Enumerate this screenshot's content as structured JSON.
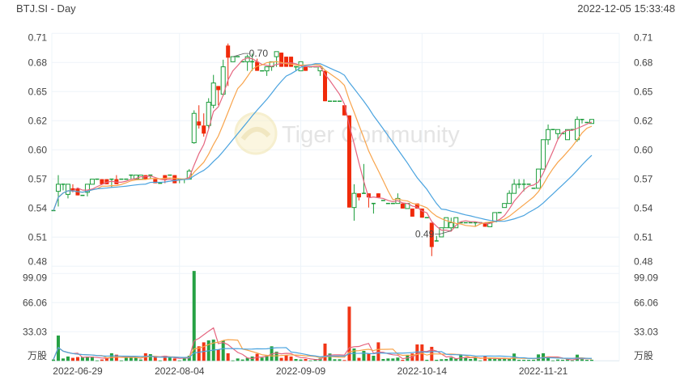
{
  "header": {
    "title": "BTJ.SI - Day",
    "timestamp": "2022-12-05 15:33:48"
  },
  "watermark": {
    "text": "Tiger Community"
  },
  "colors": {
    "up": "#1a9c3a",
    "down": "#f02a0a",
    "ma5": "#e5657f",
    "ma10": "#f8a44c",
    "ma20": "#4aa3df",
    "grid": "#edf4f9"
  },
  "chart_data": {
    "type": "candlestick",
    "price_axis": {
      "ylim": [
        0.48,
        0.71
      ],
      "tick_labels": [
        "0.71",
        "0.68",
        "0.65",
        "0.62",
        "0.60",
        "0.57",
        "0.54",
        "0.51",
        "0.48"
      ],
      "sides": "left-and-right"
    },
    "volume_axis": {
      "ylim": [
        0,
        99.09
      ],
      "tick_labels": [
        "99.09",
        "66.06",
        "33.03"
      ],
      "unit": "万股"
    },
    "x_tick_labels": [
      "2022-06-29",
      "2022-08-04",
      "2022-09-09",
      "2022-10-14",
      "2022-11-21"
    ],
    "annotations": {
      "high_label": "0.70",
      "high_date": "2022-08-22",
      "low_label": "0.49",
      "low_date": "2022-10-25"
    },
    "moving_averages": [
      "MA5",
      "MA10",
      "MA20"
    ],
    "grid": true,
    "dates": [
      "2022-06-29",
      "2022-06-30",
      "2022-07-01",
      "2022-07-04",
      "2022-07-05",
      "2022-07-06",
      "2022-07-07",
      "2022-07-08",
      "2022-07-11",
      "2022-07-12",
      "2022-07-13",
      "2022-07-14",
      "2022-07-15",
      "2022-07-18",
      "2022-07-19",
      "2022-07-20",
      "2022-07-21",
      "2022-07-22",
      "2022-07-25",
      "2022-07-26",
      "2022-07-27",
      "2022-07-28",
      "2022-07-29",
      "2022-08-01",
      "2022-08-02",
      "2022-08-03",
      "2022-08-04",
      "2022-08-05",
      "2022-08-08",
      "2022-08-10",
      "2022-08-11",
      "2022-08-12",
      "2022-08-15",
      "2022-08-16",
      "2022-08-17",
      "2022-08-18",
      "2022-08-19",
      "2022-08-22",
      "2022-08-23",
      "2022-08-24",
      "2022-08-25",
      "2022-08-26",
      "2022-08-29",
      "2022-08-30",
      "2022-08-31",
      "2022-09-01",
      "2022-09-02",
      "2022-09-05",
      "2022-09-06",
      "2022-09-07",
      "2022-09-08",
      "2022-09-09",
      "2022-09-12",
      "2022-09-13",
      "2022-09-14",
      "2022-09-15",
      "2022-09-16",
      "2022-09-19",
      "2022-09-20",
      "2022-09-21",
      "2022-09-22",
      "2022-09-23",
      "2022-09-26",
      "2022-09-27",
      "2022-09-28",
      "2022-09-29",
      "2022-09-30",
      "2022-10-03",
      "2022-10-04",
      "2022-10-05",
      "2022-10-06",
      "2022-10-07",
      "2022-10-10",
      "2022-10-11",
      "2022-10-12",
      "2022-10-13",
      "2022-10-14",
      "2022-10-17",
      "2022-10-18",
      "2022-10-19",
      "2022-10-20",
      "2022-10-21",
      "2022-10-25",
      "2022-10-26",
      "2022-10-27",
      "2022-10-28",
      "2022-10-31",
      "2022-11-01",
      "2022-11-02",
      "2022-11-03",
      "2022-11-04",
      "2022-11-07",
      "2022-11-08",
      "2022-11-09",
      "2022-11-10",
      "2022-11-11",
      "2022-11-14",
      "2022-11-15",
      "2022-11-16",
      "2022-11-17",
      "2022-11-18",
      "2022-11-21",
      "2022-11-22",
      "2022-11-23",
      "2022-11-24",
      "2022-11-25",
      "2022-11-28",
      "2022-11-29",
      "2022-11-30",
      "2022-12-01",
      "2022-12-02",
      "2022-12-05"
    ],
    "ohlc": [
      [
        0.535,
        0.535,
        0.535,
        0.535
      ],
      [
        0.554,
        0.57,
        0.539,
        0.561
      ],
      [
        0.561,
        0.561,
        0.555,
        0.561
      ],
      [
        0.551,
        0.561,
        0.547,
        0.561
      ],
      [
        0.557,
        0.561,
        0.553,
        0.554
      ],
      [
        0.557,
        0.557,
        0.55,
        0.55
      ],
      [
        0.55,
        0.55,
        0.55,
        0.55
      ],
      [
        0.553,
        0.561,
        0.549,
        0.561
      ],
      [
        0.561,
        0.566,
        0.561,
        0.566
      ],
      [
        0.566,
        0.566,
        0.566,
        0.566
      ],
      [
        0.566,
        0.566,
        0.561,
        0.561
      ],
      [
        0.566,
        0.566,
        0.561,
        0.561
      ],
      [
        0.566,
        0.566,
        0.558,
        0.566
      ],
      [
        0.566,
        0.57,
        0.561,
        0.561
      ],
      [
        0.566,
        0.566,
        0.566,
        0.566
      ],
      [
        0.566,
        0.566,
        0.566,
        0.566
      ],
      [
        0.57,
        0.57,
        0.566,
        0.57
      ],
      [
        0.566,
        0.57,
        0.566,
        0.57
      ],
      [
        0.566,
        0.57,
        0.566,
        0.57
      ],
      [
        0.57,
        0.57,
        0.566,
        0.566
      ],
      [
        0.57,
        0.57,
        0.566,
        0.57
      ],
      [
        0.566,
        0.566,
        0.562,
        0.562
      ],
      [
        0.562,
        0.562,
        0.562,
        0.562
      ],
      [
        0.57,
        0.57,
        0.562,
        0.566
      ],
      [
        0.57,
        0.57,
        0.57,
        0.57
      ],
      [
        0.57,
        0.57,
        0.562,
        0.562
      ],
      [
        0.566,
        0.566,
        0.562,
        0.566
      ],
      [
        0.566,
        0.566,
        0.562,
        0.566
      ],
      [
        0.566,
        0.576,
        0.566,
        0.574
      ],
      [
        0.602,
        0.634,
        0.601,
        0.631
      ],
      [
        0.623,
        0.639,
        0.616,
        0.619
      ],
      [
        0.619,
        0.631,
        0.608,
        0.611
      ],
      [
        0.619,
        0.646,
        0.616,
        0.642
      ],
      [
        0.639,
        0.669,
        0.636,
        0.661
      ],
      [
        0.658,
        0.658,
        0.639,
        0.654
      ],
      [
        0.65,
        0.684,
        0.648,
        0.677
      ],
      [
        0.698,
        0.7,
        0.658,
        0.686
      ],
      [
        0.682,
        0.687,
        0.682,
        0.687
      ],
      [
        0.687,
        0.687,
        0.687,
        0.687
      ],
      [
        0.682,
        0.682,
        0.682,
        0.682
      ],
      [
        0.682,
        0.689,
        0.673,
        0.687
      ],
      [
        0.682,
        0.69,
        0.673,
        0.682
      ],
      [
        0.682,
        0.685,
        0.673,
        0.673
      ],
      [
        0.673,
        0.673,
        0.673,
        0.673
      ],
      [
        0.673,
        0.677,
        0.668,
        0.677
      ],
      [
        0.677,
        0.682,
        0.673,
        0.682
      ],
      [
        0.687,
        0.692,
        0.677,
        0.692
      ],
      [
        0.691,
        0.691,
        0.677,
        0.677
      ],
      [
        0.687,
        0.687,
        0.677,
        0.677
      ],
      [
        0.687,
        0.687,
        0.677,
        0.677
      ],
      [
        0.677,
        0.677,
        0.673,
        0.677
      ],
      [
        0.673,
        0.682,
        0.673,
        0.682
      ],
      [
        0.677,
        0.677,
        0.673,
        0.673
      ],
      [
        0.677,
        0.677,
        0.677,
        0.677
      ],
      [
        0.677,
        0.677,
        0.677,
        0.677
      ],
      [
        0.673,
        0.677,
        0.668,
        0.677
      ],
      [
        0.673,
        0.673,
        0.643,
        0.643
      ],
      [
        0.643,
        0.643,
        0.643,
        0.643
      ],
      [
        0.643,
        0.643,
        0.643,
        0.643
      ],
      [
        0.643,
        0.643,
        0.643,
        0.643
      ],
      [
        0.639,
        0.639,
        0.629,
        0.629
      ],
      [
        0.629,
        0.629,
        0.538,
        0.538
      ],
      [
        0.538,
        0.561,
        0.525,
        0.552
      ],
      [
        0.552,
        0.552,
        0.545,
        0.548
      ],
      [
        0.552,
        0.581,
        0.552,
        0.552
      ],
      [
        0.552,
        0.552,
        0.538,
        0.548
      ],
      [
        0.542,
        0.542,
        0.532,
        0.542
      ],
      [
        0.552,
        0.552,
        0.548,
        0.548
      ],
      [
        0.545,
        0.545,
        0.545,
        0.545
      ],
      [
        0.542,
        0.542,
        0.542,
        0.542
      ],
      [
        0.542,
        0.542,
        0.542,
        0.542
      ],
      [
        0.542,
        0.552,
        0.542,
        0.547
      ],
      [
        0.542,
        0.542,
        0.537,
        0.537
      ],
      [
        0.537,
        0.542,
        0.537,
        0.542
      ],
      [
        0.537,
        0.537,
        0.529,
        0.529
      ],
      [
        0.542,
        0.542,
        0.537,
        0.537
      ],
      [
        0.537,
        0.537,
        0.528,
        0.528
      ],
      [
        0.528,
        0.528,
        0.528,
        0.528
      ],
      [
        0.523,
        0.523,
        0.49,
        0.499
      ],
      [
        0.505,
        0.51,
        0.505,
        0.505
      ],
      [
        0.509,
        0.518,
        0.509,
        0.518
      ],
      [
        0.518,
        0.528,
        0.518,
        0.528
      ],
      [
        0.518,
        0.528,
        0.515,
        0.523
      ],
      [
        0.518,
        0.528,
        0.518,
        0.528
      ],
      [
        0.523,
        0.523,
        0.523,
        0.523
      ],
      [
        0.523,
        0.523,
        0.523,
        0.523
      ],
      [
        0.523,
        0.523,
        0.523,
        0.523
      ],
      [
        0.523,
        0.523,
        0.519,
        0.523
      ],
      [
        0.523,
        0.523,
        0.523,
        0.523
      ],
      [
        0.523,
        0.523,
        0.519,
        0.519
      ],
      [
        0.519,
        0.523,
        0.519,
        0.523
      ],
      [
        0.524,
        0.533,
        0.524,
        0.533
      ],
      [
        0.533,
        0.533,
        0.533,
        0.533
      ],
      [
        0.538,
        0.542,
        0.538,
        0.542
      ],
      [
        0.542,
        0.555,
        0.542,
        0.552
      ],
      [
        0.552,
        0.566,
        0.552,
        0.561
      ],
      [
        0.561,
        0.566,
        0.557,
        0.561
      ],
      [
        0.561,
        0.566,
        0.554,
        0.561
      ],
      [
        0.561,
        0.561,
        0.561,
        0.561
      ],
      [
        0.557,
        0.557,
        0.557,
        0.557
      ],
      [
        0.557,
        0.576,
        0.557,
        0.576
      ],
      [
        0.576,
        0.605,
        0.576,
        0.605
      ],
      [
        0.605,
        0.62,
        0.6,
        0.615
      ],
      [
        0.615,
        0.615,
        0.615,
        0.615
      ],
      [
        0.611,
        0.615,
        0.605,
        0.615
      ],
      [
        0.611,
        0.611,
        0.611,
        0.611
      ],
      [
        0.605,
        0.615,
        0.605,
        0.615
      ],
      [
        0.615,
        0.615,
        0.615,
        0.615
      ],
      [
        0.605,
        0.628,
        0.603,
        0.625
      ],
      [
        0.625,
        0.625,
        0.621,
        0.625
      ],
      [
        0.622,
        0.622,
        0.622,
        0.622
      ],
      [
        0.621,
        0.625,
        0.621,
        0.625
      ]
    ],
    "volume": [
      1.5,
      28.7,
      2.7,
      4.9,
      3.4,
      4.3,
      4.3,
      4.9,
      4.9,
      0.5,
      1.5,
      2.7,
      8.6,
      7,
      0.5,
      4.3,
      4.3,
      4.3,
      1.5,
      8.6,
      7.6,
      4.3,
      0.5,
      5.8,
      4.3,
      2.7,
      0.5,
      2.7,
      5.8,
      102,
      16.5,
      21,
      23.2,
      24.1,
      12.8,
      23.2,
      8.6,
      0.5,
      2.7,
      1.5,
      3.4,
      4.9,
      8,
      3.7,
      5.8,
      16.5,
      10.4,
      3.4,
      6.4,
      4.9,
      2.1,
      1.5,
      2.1,
      0.5,
      1.5,
      2.7,
      19.6,
      8.3,
      1.8,
      1.8,
      0.9,
      61.5,
      14,
      3.4,
      11.3,
      8.3,
      5.8,
      21,
      2.1,
      2.7,
      2.7,
      3.7,
      1.2,
      6.4,
      8.3,
      18.6,
      18.6,
      1.2,
      15.9,
      1.2,
      1.8,
      2.1,
      3.7,
      2.7,
      6.4,
      3.7,
      2.1,
      3.7,
      0.5,
      4.9,
      2.7,
      2.1,
      2.1,
      2.1,
      2.7,
      8.3,
      1.2,
      1.2,
      1.2,
      1.2,
      7.3,
      8.6,
      4.3,
      0.5,
      1.5,
      1.2,
      1.5,
      0.5,
      7,
      1.8,
      1.2,
      1.2
    ]
  }
}
